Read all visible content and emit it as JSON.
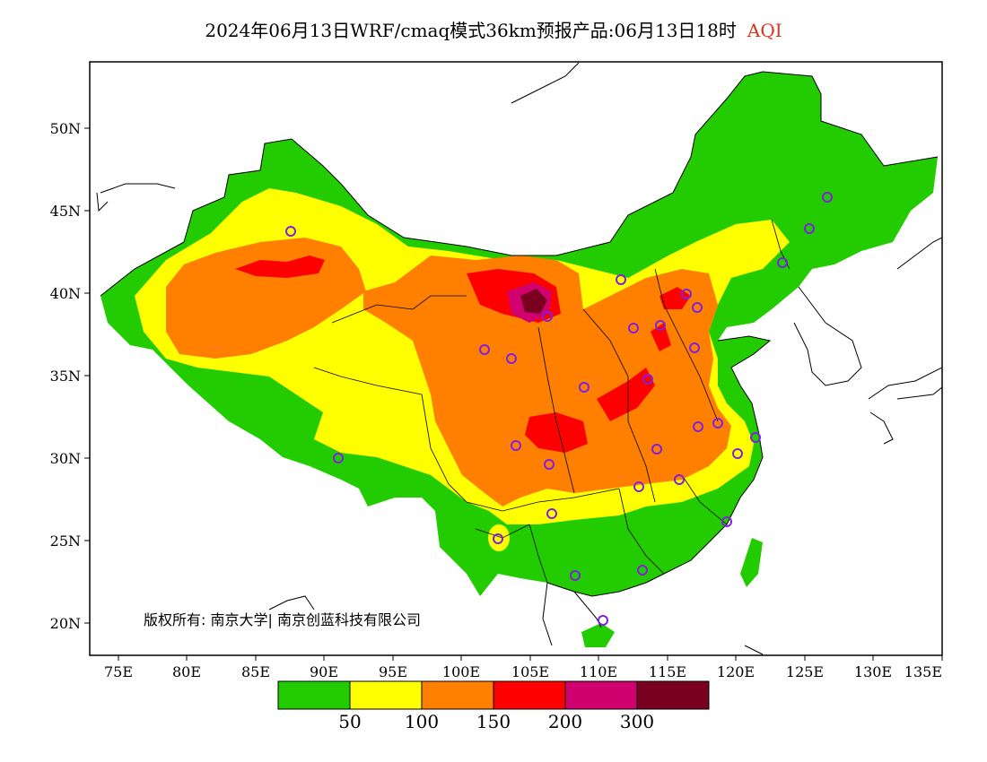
{
  "title": {
    "text": "2024年06月13日WRF/cmaq模式36km预报产品:06月13日18时",
    "variable": "AQI",
    "variable_color": "#e0301e"
  },
  "map": {
    "lon_ticks": [
      "75E",
      "80E",
      "85E",
      "90E",
      "95E",
      "100E",
      "105E",
      "110E",
      "115E",
      "120E",
      "125E",
      "130E",
      "135E"
    ],
    "lat_ticks": [
      "50N",
      "45N",
      "40N",
      "35N",
      "30N",
      "25N",
      "20N"
    ],
    "copyright": "版权所有: 南京大学| 南京创蓝科技有限公司"
  },
  "legend": {
    "colors": [
      "#22cc00",
      "#ffff00",
      "#ff8000",
      "#ff0000",
      "#d0006e",
      "#7a0020"
    ],
    "labels": [
      "50",
      "100",
      "150",
      "200",
      "300"
    ]
  }
}
